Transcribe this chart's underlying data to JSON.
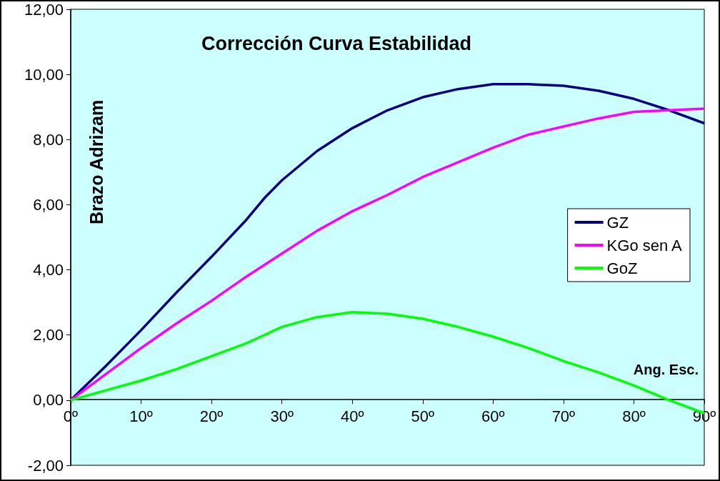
{
  "chart_data": {
    "type": "line",
    "title": "Corrección Curva Estabilidad",
    "xlabel": "Ang. Esc.",
    "ylabel": "Brazo Adrizam",
    "x": [
      0,
      5,
      10,
      15,
      20,
      25,
      27.5,
      30,
      35,
      40,
      45,
      50,
      55,
      60,
      65,
      70,
      75,
      80,
      85,
      90
    ],
    "series": [
      {
        "name": "GZ",
        "color": "#000080",
        "values": [
          0,
          1.05,
          2.15,
          3.3,
          4.4,
          5.55,
          6.2,
          6.75,
          7.65,
          8.35,
          8.9,
          9.3,
          9.55,
          9.7,
          9.7,
          9.65,
          9.5,
          9.25,
          8.9,
          8.5
        ]
      },
      {
        "name": "KGo sen A",
        "color": "#ff00ff",
        "values": [
          0,
          0.8,
          1.6,
          2.35,
          3.05,
          3.8,
          4.15,
          4.5,
          5.2,
          5.8,
          6.3,
          6.85,
          7.3,
          7.75,
          8.15,
          8.4,
          8.65,
          8.85,
          8.9,
          8.95
        ]
      },
      {
        "name": "GoZ",
        "color": "#00ff00",
        "values": [
          0,
          0.3,
          0.6,
          0.95,
          1.35,
          1.75,
          2.0,
          2.25,
          2.55,
          2.7,
          2.65,
          2.5,
          2.25,
          1.95,
          1.6,
          1.2,
          0.85,
          0.45,
          0.0,
          -0.4
        ]
      }
    ],
    "xlim": [
      0,
      90
    ],
    "ylim": [
      -2,
      12
    ],
    "xticks": [
      {
        "value": 0,
        "label": "0º"
      },
      {
        "value": 10,
        "label": "10º"
      },
      {
        "value": 20,
        "label": "20º"
      },
      {
        "value": 30,
        "label": "30º"
      },
      {
        "value": 40,
        "label": "40º"
      },
      {
        "value": 50,
        "label": "50º"
      },
      {
        "value": 60,
        "label": "60º"
      },
      {
        "value": 70,
        "label": "70º"
      },
      {
        "value": 80,
        "label": "80º"
      },
      {
        "value": 90,
        "label": "90º"
      }
    ],
    "yticks": [
      {
        "value": -2,
        "label": "-2,00"
      },
      {
        "value": 0,
        "label": "0,00"
      },
      {
        "value": 2,
        "label": "2,00"
      },
      {
        "value": 4,
        "label": "4,00"
      },
      {
        "value": 6,
        "label": "6,00"
      },
      {
        "value": 8,
        "label": "8,00"
      },
      {
        "value": 10,
        "label": "10,00"
      },
      {
        "value": 12,
        "label": "12,00"
      }
    ],
    "grid": false,
    "legend": "right",
    "marker": "none",
    "line_style": "solid"
  }
}
